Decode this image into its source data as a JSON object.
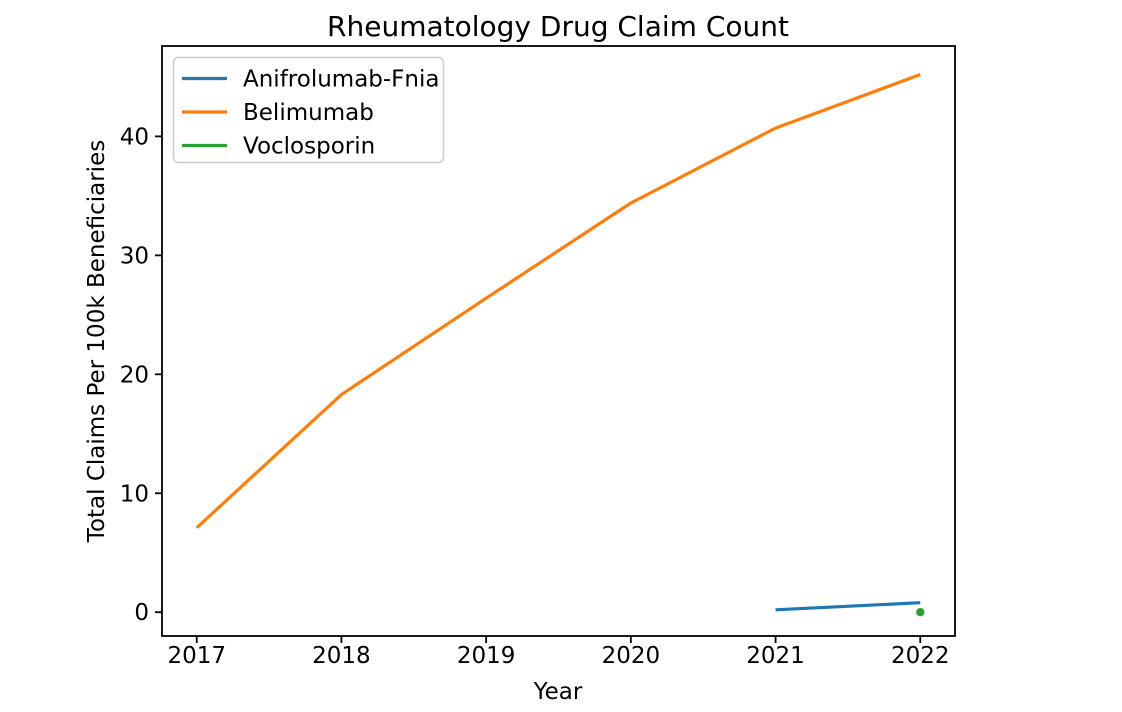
{
  "chart_data": {
    "type": "line",
    "title": "Rheumatology Drug Claim Count",
    "xlabel": "Year",
    "ylabel": "Total Claims Per 100k Beneficiaries",
    "x_ticks": [
      2017,
      2018,
      2019,
      2020,
      2021,
      2022
    ],
    "y_ticks": [
      0,
      10,
      20,
      30,
      40
    ],
    "xlim": [
      2016.76,
      2022.24
    ],
    "ylim": [
      -2.0,
      47.6
    ],
    "grid": false,
    "legend_position": "upper-left",
    "axis_color": "#000000",
    "legend_border_color": "#cccccc",
    "legend_background": "rgba(255,255,255,0.8)",
    "series": [
      {
        "name": "Anifrolumab-Fnia",
        "color": "#1f77b4",
        "style": "line",
        "x": [
          2021,
          2022
        ],
        "values": [
          0.2,
          0.8
        ]
      },
      {
        "name": "Belimumab",
        "color": "#ff7f0e",
        "style": "line",
        "x": [
          2017,
          2018,
          2019,
          2020,
          2021,
          2022
        ],
        "values": [
          7.1,
          18.3,
          26.4,
          34.4,
          40.7,
          45.2
        ]
      },
      {
        "name": "Voclosporin",
        "color": "#2ca02c",
        "style": "point",
        "x": [
          2022
        ],
        "values": [
          0.0
        ]
      }
    ]
  }
}
